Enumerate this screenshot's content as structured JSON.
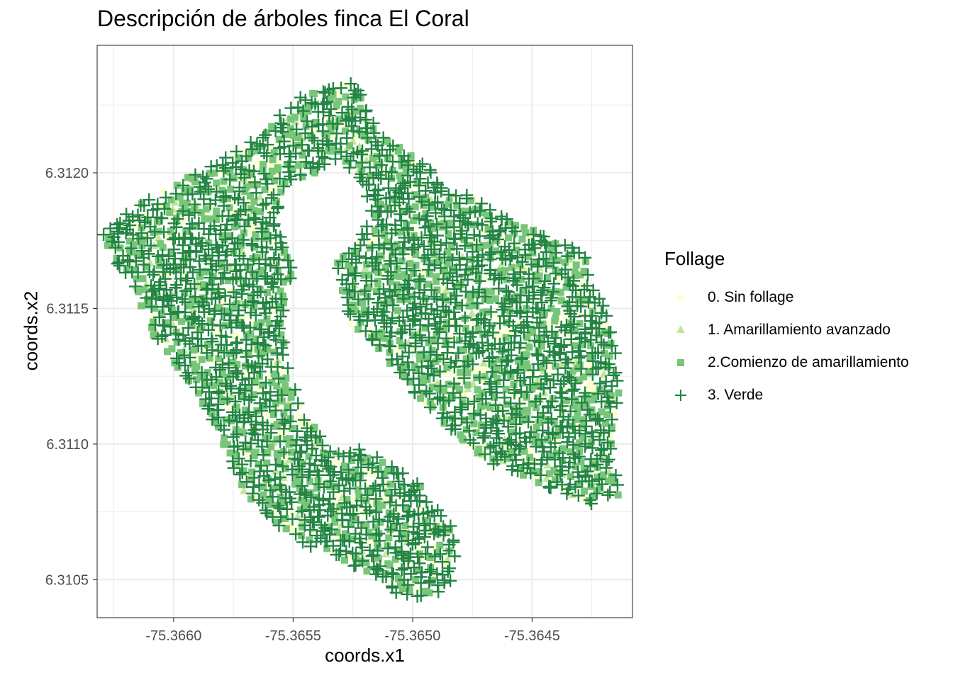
{
  "chart_data": {
    "type": "scatter",
    "title": "Descripción de árboles finca El Coral",
    "xlabel": "coords.x1",
    "ylabel": "coords.x2",
    "xlim": [
      -75.36632,
      -75.36408
    ],
    "ylim": [
      6.31036,
      6.31247
    ],
    "x_ticks": [
      "-75.3660",
      "-75.3655",
      "-75.3650",
      "-75.3645"
    ],
    "x_tick_values": [
      -75.366,
      -75.3655,
      -75.365,
      -75.3645
    ],
    "y_ticks": [
      "6.3105",
      "6.3110",
      "6.3115",
      "6.3120"
    ],
    "y_tick_values": [
      6.3105,
      6.311,
      6.3115,
      6.312
    ],
    "grid": true,
    "legend": {
      "title": "Follage",
      "position": "right",
      "entries": [
        {
          "label": "0. Sin follage",
          "shape": "circle",
          "color": "#FFFFCC"
        },
        {
          "label": "1. Amarillamiento avanzado",
          "shape": "triangle",
          "color": "#C2E699"
        },
        {
          "label": "2.Comienzo de amarillamiento",
          "shape": "square",
          "color": "#78C679"
        },
        {
          "label": "3. Verde",
          "shape": "plus",
          "color": "#238443"
        }
      ]
    },
    "region_shape": [
      [
        -75.36627,
        6.31181
      ],
      [
        -75.36612,
        6.3119
      ],
      [
        -75.36595,
        6.31198
      ],
      [
        -75.36585,
        6.31202
      ],
      [
        -75.36565,
        6.31213
      ],
      [
        -75.36555,
        6.31223
      ],
      [
        -75.36548,
        6.31228
      ],
      [
        -75.3653,
        6.31233
      ],
      [
        -75.36523,
        6.31238
      ],
      [
        -75.36522,
        6.3123
      ],
      [
        -75.36518,
        6.31222
      ],
      [
        -75.3651,
        6.31212
      ],
      [
        -75.36495,
        6.31205
      ],
      [
        -75.36488,
        6.31196
      ],
      [
        -75.36472,
        6.3119
      ],
      [
        -75.36458,
        6.31182
      ],
      [
        -75.36448,
        6.31179
      ],
      [
        -75.36438,
        6.31175
      ],
      [
        -75.36428,
        6.3117
      ],
      [
        -75.36425,
        6.31158
      ],
      [
        -75.36418,
        6.31148
      ],
      [
        -75.36415,
        6.31138
      ],
      [
        -75.36413,
        6.31125
      ],
      [
        -75.36415,
        6.3111
      ],
      [
        -75.36417,
        6.31095
      ],
      [
        -75.36412,
        6.31082
      ],
      [
        -75.36425,
        6.31077
      ],
      [
        -75.36438,
        6.31082
      ],
      [
        -75.36455,
        6.31088
      ],
      [
        -75.36472,
        6.31095
      ],
      [
        -75.36488,
        6.31108
      ],
      [
        -75.36503,
        6.31122
      ],
      [
        -75.36517,
        6.31137
      ],
      [
        -75.36527,
        6.31145
      ],
      [
        -75.3653,
        6.31156
      ],
      [
        -75.36532,
        6.31167
      ],
      [
        -75.36525,
        6.31173
      ],
      [
        -75.36517,
        6.31183
      ],
      [
        -75.3652,
        6.31195
      ],
      [
        -75.3653,
        6.31205
      ],
      [
        -75.36542,
        6.31199
      ],
      [
        -75.36552,
        6.31195
      ],
      [
        -75.36557,
        6.31184
      ],
      [
        -75.36553,
        6.31172
      ],
      [
        -75.3655,
        6.31162
      ],
      [
        -75.36547,
        6.31152
      ],
      [
        -75.36546,
        6.31141
      ],
      [
        -75.36548,
        6.31128
      ],
      [
        -75.36542,
        6.31114
      ],
      [
        -75.36528,
        6.31102
      ],
      [
        -75.36512,
        6.31094
      ],
      [
        -75.36497,
        6.31085
      ],
      [
        -75.36488,
        6.31075
      ],
      [
        -75.36482,
        6.31068
      ],
      [
        -75.36482,
        6.3106
      ],
      [
        -75.36483,
        6.3105
      ],
      [
        -75.36492,
        6.31043
      ],
      [
        -75.36507,
        6.31045
      ],
      [
        -75.36518,
        6.31052
      ],
      [
        -75.36532,
        6.31058
      ],
      [
        -75.3655,
        6.31065
      ],
      [
        -75.36568,
        6.31077
      ],
      [
        -75.36578,
        6.31097
      ],
      [
        -75.36585,
        6.3111
      ],
      [
        -75.36598,
        6.31128
      ],
      [
        -75.3661,
        6.31142
      ],
      [
        -75.36617,
        6.31158
      ],
      [
        -75.36625,
        6.31168
      ],
      [
        -75.3663,
        6.31178
      ]
    ],
    "hole_shape": [
      [
        -75.36552,
        6.31158
      ],
      [
        -75.3653,
        6.31148
      ],
      [
        -75.36522,
        6.31135
      ],
      [
        -75.36518,
        6.31119
      ],
      [
        -75.36518,
        6.31106
      ],
      [
        -75.36525,
        6.31097
      ],
      [
        -75.36535,
        6.31098
      ],
      [
        -75.36545,
        6.31112
      ],
      [
        -75.36552,
        6.31127
      ],
      [
        -75.36555,
        6.31144
      ]
    ],
    "series": [
      {
        "name": "0. Sin follage",
        "share": 0.08,
        "color": "#FFFFCC",
        "shape": "circle"
      },
      {
        "name": "1. Amarillamiento avanzado",
        "share": 0.04,
        "color": "#C2E699",
        "shape": "triangle"
      },
      {
        "name": "2.Comienzo de amarillamiento",
        "share": 0.3,
        "color": "#78C679",
        "shape": "square"
      },
      {
        "name": "3. Verde",
        "share": 0.58,
        "color": "#238443",
        "shape": "plus"
      }
    ],
    "point_spacing_deg": 4.5e-05
  }
}
